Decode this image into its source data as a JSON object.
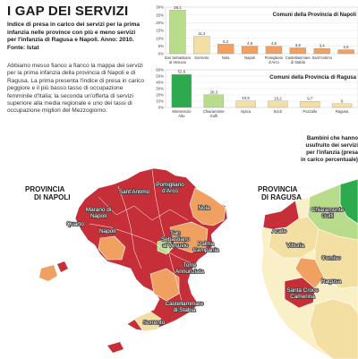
{
  "article": {
    "title": "I GAP DEI SERVIZI",
    "subtitle": "Indice di presa in carico dei servizi per la prima infanzia nelle province con più e meno servizi per l'infanzia di Ragusa e Napoli. Anno: 2010. Fonte: Istat",
    "body": "Abbiamo messo fianco a fianco la mappa dei servizi per la prima infanzia della provincia di Napoli e di Ragusa. La prima presenta l'indice di presa in carico peggiore e il più basso tasso di occupazione femminile d'Italia; la seconda un'offerta di servizi superiore alla media regionale e uno dei tassi di occupazione migliori del Mezzogiorno."
  },
  "chart_data": [
    {
      "type": "bar",
      "title": "Comuni della Provincia di Napoli",
      "categories": [
        "San Sebastiano al Vesuvio",
        "Sorrento",
        "Nola",
        "Napoli",
        "Pomigliano d'Arco",
        "Castellammare di Stabia",
        "Sant'Antimo",
        ""
      ],
      "values": [
        28.1,
        11.2,
        6.2,
        4.9,
        4.8,
        3.8,
        3.4,
        2.6
      ],
      "value_labels": [
        "28,1",
        "11,2",
        "6,2",
        "4,9",
        "4,8",
        "3,8",
        "3,4",
        "2,6"
      ],
      "colors": [
        "#b8dc8c",
        "#f3dfa1",
        "#f0a060",
        "#f0a060",
        "#f0a060",
        "#f0a060",
        "#f0a060",
        "#f0a060"
      ],
      "yticks": [
        "0%",
        "5%",
        "10%",
        "15%",
        "20%",
        "25%",
        "30%"
      ],
      "ylim": [
        0,
        30
      ]
    },
    {
      "type": "bar",
      "title": "Comuni della Provincia di Ragusa",
      "categories": [
        "Montevicso Alto",
        "Chiaramonte Gulfi",
        "Ispica",
        "Scicli",
        "Pozzallo",
        "Ragusa"
      ],
      "values": [
        52.6,
        20.3,
        10.5,
        10.2,
        9.7,
        6
      ],
      "value_labels": [
        "52,6",
        "20,3",
        "10,5",
        "10,2",
        "9,7",
        "6"
      ],
      "colors": [
        "#2eaa4e",
        "#b8dc8c",
        "#f3dfa1",
        "#f3dfa1",
        "#f3dfa1",
        "#f3dfa1"
      ],
      "yticks": [
        "0%",
        "10%",
        "20%",
        "30%",
        "40%",
        "50%",
        "60%"
      ],
      "ylim": [
        0,
        60
      ]
    }
  ],
  "map": {
    "napoli": {
      "province_label": "PROVINCIA DI NAPOLI",
      "places": [
        "Sant'Antimo",
        "Pomigliano d'Arco",
        "Marano di Napoli",
        "Nola",
        "Quarto",
        "Napoli",
        "San Sebastiano al Vesuvio",
        "Palma Campania",
        "Torre Annunziata",
        "Castellammare di Stabia",
        "Sorrento"
      ]
    },
    "ragusa": {
      "province_label": "PROVINCIA DI RAGUSA",
      "places": [
        "Chiaramonte Gulfi",
        "Acate",
        "Vittoria",
        "Comiso",
        "Ragusa",
        "Santa Croce Camerina"
      ]
    },
    "legend_title": "Bambini che hanno usufruito dei servizi per l'infanzia (presa in carico percentuale)"
  }
}
